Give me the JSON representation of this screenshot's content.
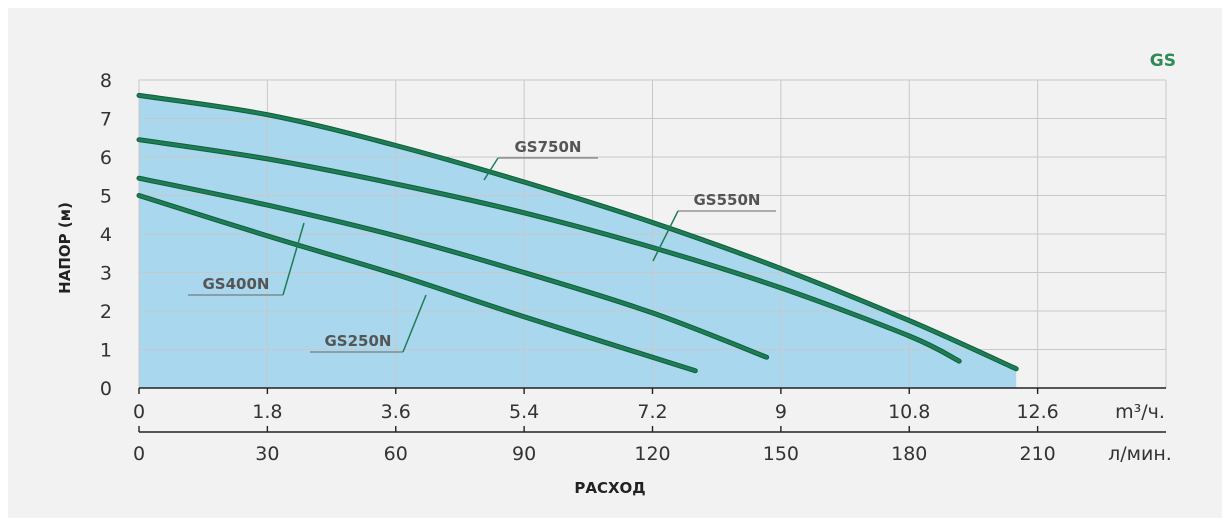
{
  "chart_data": {
    "type": "line",
    "brand": "GS",
    "ylabel": "НАПОР (м)",
    "xlabel": "РАСХОД",
    "ylim": [
      0,
      8
    ],
    "yticks": [
      "0",
      "1",
      "2",
      "3",
      "4",
      "5",
      "6",
      "7",
      "8"
    ],
    "xlim": [
      0,
      14.4
    ],
    "x_axes": [
      {
        "unit": "m³/ч.",
        "ticks": [
          "0",
          "1.8",
          "3.6",
          "5.4",
          "7.2",
          "9",
          "10.8",
          "12.6"
        ]
      },
      {
        "unit": "л/мин.",
        "ticks": [
          "0",
          "30",
          "60",
          "90",
          "120",
          "150",
          "180",
          "210"
        ]
      }
    ],
    "grid": true,
    "series": [
      {
        "name": "GS750N",
        "x": [
          0,
          1.8,
          3.6,
          5.4,
          7.2,
          9,
          10.8,
          12.3
        ],
        "y": [
          7.6,
          7.1,
          6.3,
          5.35,
          4.3,
          3.1,
          1.75,
          0.5
        ]
      },
      {
        "name": "GS550N",
        "x": [
          0,
          1.8,
          3.6,
          5.4,
          7.2,
          9,
          10.8,
          11.5
        ],
        "y": [
          6.45,
          5.95,
          5.3,
          4.55,
          3.65,
          2.6,
          1.35,
          0.7
        ]
      },
      {
        "name": "GS400N",
        "x": [
          0,
          1.8,
          3.6,
          5.4,
          7.2,
          8.8
        ],
        "y": [
          5.45,
          4.75,
          3.95,
          3.0,
          1.95,
          0.8
        ]
      },
      {
        "name": "GS250N",
        "x": [
          0,
          1.8,
          3.6,
          5.4,
          7.8
        ],
        "y": [
          5.0,
          3.95,
          2.95,
          1.85,
          0.45
        ]
      }
    ],
    "colors": {
      "line": "#1e7d55",
      "fill": "#a9d7ee",
      "grid": "#c8c8c8",
      "brand": "#2e8a57",
      "text": "#333333"
    }
  }
}
